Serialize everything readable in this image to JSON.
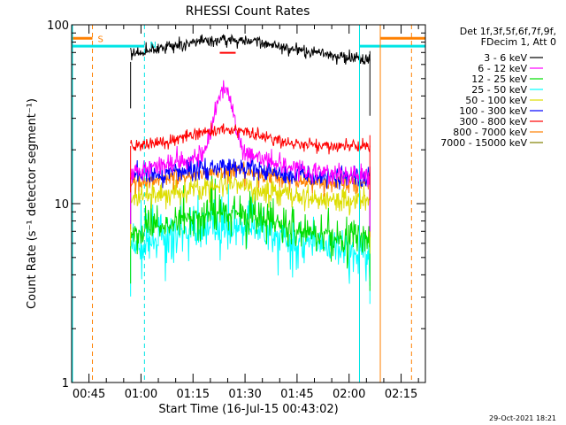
{
  "chart_data": {
    "type": "line",
    "title": "RHESSI Count Rates",
    "xlabel": "Start Time (16-Jul-15 00:43:02)",
    "ylabel": "Count Rate (s⁻¹ detector segment⁻¹)",
    "yscale": "log",
    "ylim": [
      1,
      100
    ],
    "xlim": [
      "00:40",
      "02:22"
    ],
    "x_ticks": [
      "00:45",
      "01:00",
      "01:15",
      "01:30",
      "01:45",
      "02:00",
      "02:15"
    ],
    "y_ticks": [
      "1",
      "10",
      "100"
    ],
    "legend_header": [
      "Det 1f,3f,5f,6f,7f,9f,",
      "FDecim 1, Att 0"
    ],
    "legend_position": "right",
    "timestamp": "29-Oct-2021 18:21",
    "markers": [
      {
        "label": "S",
        "time": "00:46",
        "color": "#ff8000"
      },
      {
        "label": "N",
        "time": "01:01",
        "color": "#00e5e5"
      }
    ],
    "series": [
      {
        "name": "3 - 6 keV",
        "color": "#000000",
        "approx": {
          "start": "00:57",
          "end": "02:06",
          "base": 62,
          "peak": 82,
          "peak_time": "01:25"
        }
      },
      {
        "name": "6 - 12 keV",
        "color": "#ff00ff",
        "approx": {
          "start": "00:57",
          "end": "02:06",
          "base": 14,
          "peak": 44,
          "peak_time": "01:24"
        }
      },
      {
        "name": "12 - 25 keV",
        "color": "#00dd00",
        "approx": {
          "start": "00:57",
          "end": "02:06",
          "base": 6.5,
          "peak": 9,
          "peak_time": "01:24"
        }
      },
      {
        "name": "25 - 50 keV",
        "color": "#00ffff",
        "approx": {
          "start": "00:57",
          "end": "02:06",
          "base": 5.5,
          "peak": 7.5,
          "peak_time": "01:24"
        }
      },
      {
        "name": "50 - 100 keV",
        "color": "#dddd00",
        "approx": {
          "start": "00:57",
          "end": "02:06",
          "base": 10.5,
          "peak": 12.5,
          "peak_time": "01:24"
        }
      },
      {
        "name": "100 - 300 keV",
        "color": "#0000ff",
        "approx": {
          "start": "00:57",
          "end": "02:06",
          "base": 14,
          "peak": 16,
          "peak_time": "01:24"
        }
      },
      {
        "name": "300 - 800 keV",
        "color": "#ff0000",
        "approx": {
          "start": "00:57",
          "end": "02:06",
          "base": 21,
          "peak": 26,
          "peak_time": "01:24"
        }
      },
      {
        "name": "800 - 7000 keV",
        "color": "#ff8000",
        "approx": {
          "start": "00:57",
          "end": "02:06",
          "base": 13,
          "peak": 15,
          "peak_time": "01:24"
        }
      },
      {
        "name": "7000 - 15000 keV",
        "color": "#808000",
        "approx": {
          "start": "00:57",
          "end": "02:06",
          "base": 0,
          "peak": 0,
          "peak_time": "01:24"
        }
      }
    ]
  }
}
